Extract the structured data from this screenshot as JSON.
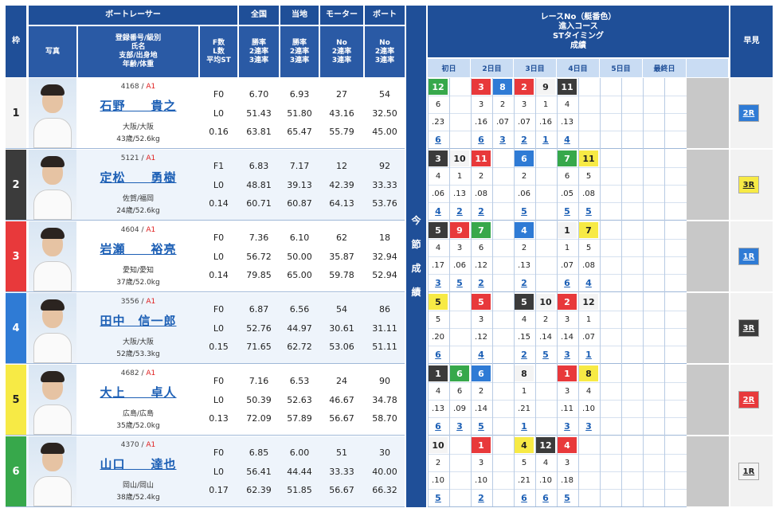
{
  "header": {
    "waku": "枠",
    "photo": "写真",
    "racer": "ボートレーサー",
    "racer_sub": "登録番号/級別\n氏名\n支部/出身地\n年齢/体重",
    "f": "F数\nL数\n平均ST",
    "zenkoku": "全国",
    "touchi": "当地",
    "motor": "モーター",
    "boat": "ボート",
    "rate3": "勝率\n2連率\n3連率",
    "no3": "No\n2連率\n3連率",
    "racenote": "レースNo（艇番色）\n進入コース\nSTタイミング\n成績",
    "hayami": "早見",
    "konsetsu": [
      "今",
      "節",
      "成",
      "績"
    ],
    "days": [
      "初日",
      "2日目",
      "3日目",
      "4日目",
      "5日目",
      "最終日"
    ]
  },
  "racers": [
    {
      "waku": "1",
      "id": "4168",
      "cls": "A1",
      "name": "石野　　貴之",
      "branch": "大阪/大阪",
      "age": "43歳/52.6kg",
      "f": "F0",
      "l": "L0",
      "st": "0.16",
      "z": [
        "6.70",
        "51.43",
        "63.81"
      ],
      "t": [
        "6.93",
        "51.80",
        "65.47"
      ],
      "m": [
        "27",
        "43.16",
        "55.79"
      ],
      "b": [
        "54",
        "32.50",
        "45.00"
      ],
      "hayami": "2R"
    },
    {
      "waku": "2",
      "id": "5121",
      "cls": "A1",
      "name": "定松　　勇樹",
      "branch": "佐賀/福岡",
      "age": "24歳/52.6kg",
      "f": "F1",
      "l": "L0",
      "st": "0.14",
      "z": [
        "6.83",
        "48.81",
        "60.71"
      ],
      "t": [
        "7.17",
        "39.13",
        "60.87"
      ],
      "m": [
        "12",
        "42.39",
        "64.13"
      ],
      "b": [
        "92",
        "33.33",
        "53.76"
      ],
      "hayami": "3R"
    },
    {
      "waku": "3",
      "id": "4604",
      "cls": "A1",
      "name": "岩瀬　　裕亮",
      "branch": "愛知/愛知",
      "age": "37歳/52.0kg",
      "f": "F0",
      "l": "L0",
      "st": "0.14",
      "z": [
        "7.36",
        "56.72",
        "79.85"
      ],
      "t": [
        "6.10",
        "50.00",
        "65.00"
      ],
      "m": [
        "62",
        "35.87",
        "59.78"
      ],
      "b": [
        "18",
        "32.94",
        "52.94"
      ],
      "hayami": "1R"
    },
    {
      "waku": "4",
      "id": "3556",
      "cls": "A1",
      "name": "田中　信一郎",
      "branch": "大阪/大阪",
      "age": "52歳/53.3kg",
      "f": "F0",
      "l": "L0",
      "st": "0.15",
      "z": [
        "6.87",
        "52.76",
        "71.65"
      ],
      "t": [
        "6.56",
        "44.97",
        "62.72"
      ],
      "m": [
        "54",
        "30.61",
        "53.06"
      ],
      "b": [
        "86",
        "31.11",
        "51.11"
      ],
      "hayami": "3R"
    },
    {
      "waku": "5",
      "id": "4682",
      "cls": "A1",
      "name": "大上　　卓人",
      "branch": "広島/広島",
      "age": "35歳/52.0kg",
      "f": "F0",
      "l": "L0",
      "st": "0.13",
      "z": [
        "7.16",
        "50.39",
        "72.09"
      ],
      "t": [
        "6.53",
        "52.63",
        "57.89"
      ],
      "m": [
        "24",
        "46.67",
        "56.67"
      ],
      "b": [
        "90",
        "34.78",
        "58.70"
      ],
      "hayami": "2R"
    },
    {
      "waku": "6",
      "id": "4370",
      "cls": "A1",
      "name": "山口　　達也",
      "branch": "岡山/岡山",
      "age": "38歳/52.4kg",
      "f": "F0",
      "l": "L0",
      "st": "0.17",
      "z": [
        "6.85",
        "56.41",
        "62.39"
      ],
      "t": [
        "6.00",
        "44.44",
        "51.85"
      ],
      "m": [
        "51",
        "33.33",
        "56.67"
      ],
      "b": [
        "30",
        "40.00",
        "66.32"
      ],
      "hayami": "1R"
    }
  ],
  "results": [
    [
      {
        "c": 0,
        "r": "12",
        "w": 6,
        "co": "6",
        "st": ".23",
        "rk": "6"
      },
      {
        "c": 2,
        "r": "3",
        "w": 3,
        "co": "3",
        "st": ".16",
        "rk": "6"
      },
      {
        "c": 3,
        "r": "8",
        "w": 4,
        "co": "2",
        "st": ".07",
        "rk": "3"
      },
      {
        "c": 4,
        "r": "2",
        "w": 3,
        "co": "3",
        "st": ".07",
        "rk": "2"
      },
      {
        "c": 5,
        "r": "9",
        "w": 1,
        "co": "1",
        "st": ".16",
        "rk": "1"
      },
      {
        "c": 6,
        "r": "11",
        "w": 2,
        "co": "4",
        "st": ".13",
        "rk": "4"
      }
    ],
    [
      {
        "c": 0,
        "r": "3",
        "w": 2,
        "co": "4",
        "st": ".06",
        "rk": "4"
      },
      {
        "c": 1,
        "r": "10",
        "w": 1,
        "co": "1",
        "st": ".13",
        "rk": "2"
      },
      {
        "c": 2,
        "r": "11",
        "w": 3,
        "co": "2",
        "st": ".08",
        "rk": "2"
      },
      {
        "c": 4,
        "r": "6",
        "w": 4,
        "co": "2",
        "st": ".06",
        "rk": "5"
      },
      {
        "c": 6,
        "r": "7",
        "w": 6,
        "co": "6",
        "st": ".05",
        "rk": "5"
      },
      {
        "c": 7,
        "r": "11",
        "w": 5,
        "co": "5",
        "st": ".08",
        "rk": "5"
      }
    ],
    [
      {
        "c": 0,
        "r": "5",
        "w": 2,
        "co": "4",
        "st": ".17",
        "rk": "3"
      },
      {
        "c": 1,
        "r": "9",
        "w": 3,
        "co": "3",
        "st": ".06",
        "rk": "5"
      },
      {
        "c": 2,
        "r": "7",
        "w": 6,
        "co": "6",
        "st": ".12",
        "rk": "2"
      },
      {
        "c": 4,
        "r": "4",
        "w": 4,
        "co": "2",
        "st": ".13",
        "rk": "2"
      },
      {
        "c": 6,
        "r": "1",
        "w": 1,
        "co": "1",
        "st": ".07",
        "rk": "6"
      },
      {
        "c": 7,
        "r": "7",
        "w": 5,
        "co": "5",
        "st": ".08",
        "rk": "4"
      }
    ],
    [
      {
        "c": 0,
        "r": "5",
        "w": 5,
        "co": "5",
        "st": ".20",
        "rk": "6"
      },
      {
        "c": 2,
        "r": "5",
        "w": 3,
        "co": "3",
        "st": ".12",
        "rk": "4"
      },
      {
        "c": 4,
        "r": "5",
        "w": 2,
        "co": "4",
        "st": ".15",
        "rk": "2"
      },
      {
        "c": 5,
        "r": "10",
        "w": 1,
        "co": "2",
        "st": ".14",
        "rk": "5"
      },
      {
        "c": 6,
        "r": "2",
        "w": 3,
        "co": "3",
        "st": ".14",
        "rk": "3"
      },
      {
        "c": 7,
        "r": "12",
        "w": 1,
        "co": "1",
        "st": ".07",
        "rk": "1"
      }
    ],
    [
      {
        "c": 0,
        "r": "1",
        "w": 2,
        "co": "4",
        "st": ".13",
        "rk": "6"
      },
      {
        "c": 1,
        "r": "6",
        "w": 6,
        "co": "6",
        "st": ".09",
        "rk": "3"
      },
      {
        "c": 2,
        "r": "6",
        "w": 4,
        "co": "2",
        "st": ".14",
        "rk": "5"
      },
      {
        "c": 4,
        "r": "8",
        "w": 1,
        "co": "1",
        "st": ".21",
        "rk": "1"
      },
      {
        "c": 6,
        "r": "1",
        "w": 3,
        "co": "3",
        "st": ".11",
        "rk": "3"
      },
      {
        "c": 7,
        "r": "8",
        "w": 5,
        "co": "4",
        "st": ".10",
        "rk": "3"
      }
    ],
    [
      {
        "c": 0,
        "r": "10",
        "w": 1,
        "co": "2",
        "st": ".10",
        "rk": "5"
      },
      {
        "c": 2,
        "r": "1",
        "w": 3,
        "co": "3",
        "st": ".10",
        "rk": "2"
      },
      {
        "c": 4,
        "r": "4",
        "w": 5,
        "co": "5",
        "st": ".21",
        "rk": "6"
      },
      {
        "c": 5,
        "r": "12",
        "w": 2,
        "co": "4",
        "st": ".10",
        "rk": "6"
      },
      {
        "c": 6,
        "r": "4",
        "w": 3,
        "co": "3",
        "st": ".18",
        "rk": "5"
      }
    ]
  ],
  "colors": {
    "w1": "#f4f4f4",
    "w2": "#3b3b3b",
    "w3": "#e8393b",
    "w4": "#2f7bd5",
    "w5": "#f7ea45",
    "w6": "#37a84b"
  }
}
